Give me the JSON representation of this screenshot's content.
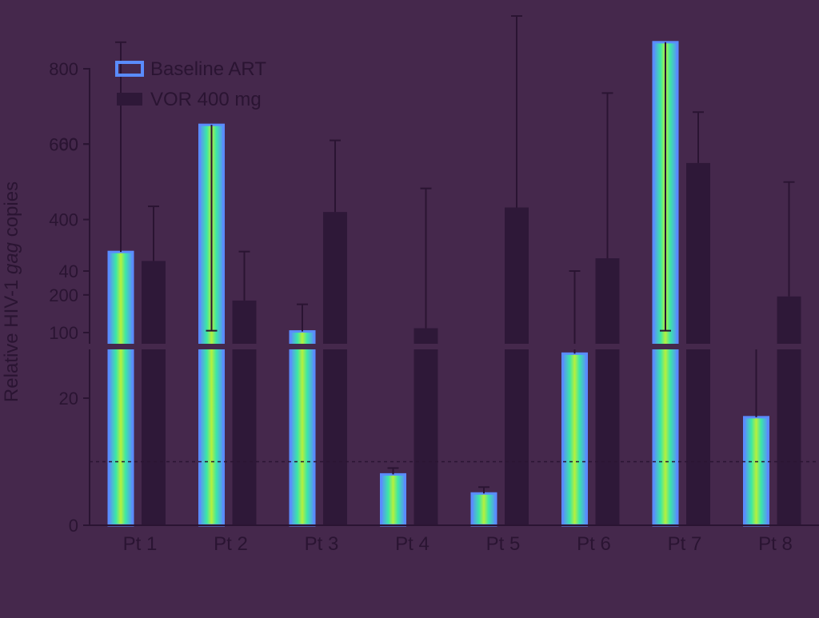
{
  "chart_data": {
    "type": "bar",
    "categories": [
      "Pt 1",
      "Pt 2",
      "Pt 3",
      "Pt 4",
      "Pt 5",
      "Pt 6",
      "Pt 7",
      "Pt 8"
    ],
    "series": [
      {
        "name": "Baseline ART",
        "values": [
          43,
          63,
          103,
          8,
          5,
          27,
          76,
          17
        ],
        "errors": [
          76,
          105,
          175,
          9,
          6,
          40,
          105,
          28
        ]
      },
      {
        "name": "VOR 400 mg",
        "values": [
          290,
          185,
          420,
          31,
          50,
          42,
          550,
          36
        ],
        "errors": [
          435,
          315,
          610,
          53,
          90,
          68,
          685,
          54
        ]
      }
    ],
    "ylabel_prefix": "Relative HIV-1 ",
    "ylabel_italic": "gag",
    "ylabel_suffix": " copies",
    "ytick_labels": [
      "0",
      "20",
      "40",
      "60",
      "100",
      "200",
      "400",
      "600",
      "800"
    ],
    "yscale": "broken",
    "y_break": [
      80,
      95
    ],
    "ylim": [
      0,
      800
    ],
    "reference_line": 10,
    "legend_position": "top-left",
    "grid": false,
    "colors": {
      "background": "#45284c",
      "baseline_fill": "#3ce7a6",
      "baseline_edge": "#5a8cff",
      "vor_fill": "#2e1838",
      "axis": "#2a1432",
      "text": "#2a1432"
    }
  }
}
